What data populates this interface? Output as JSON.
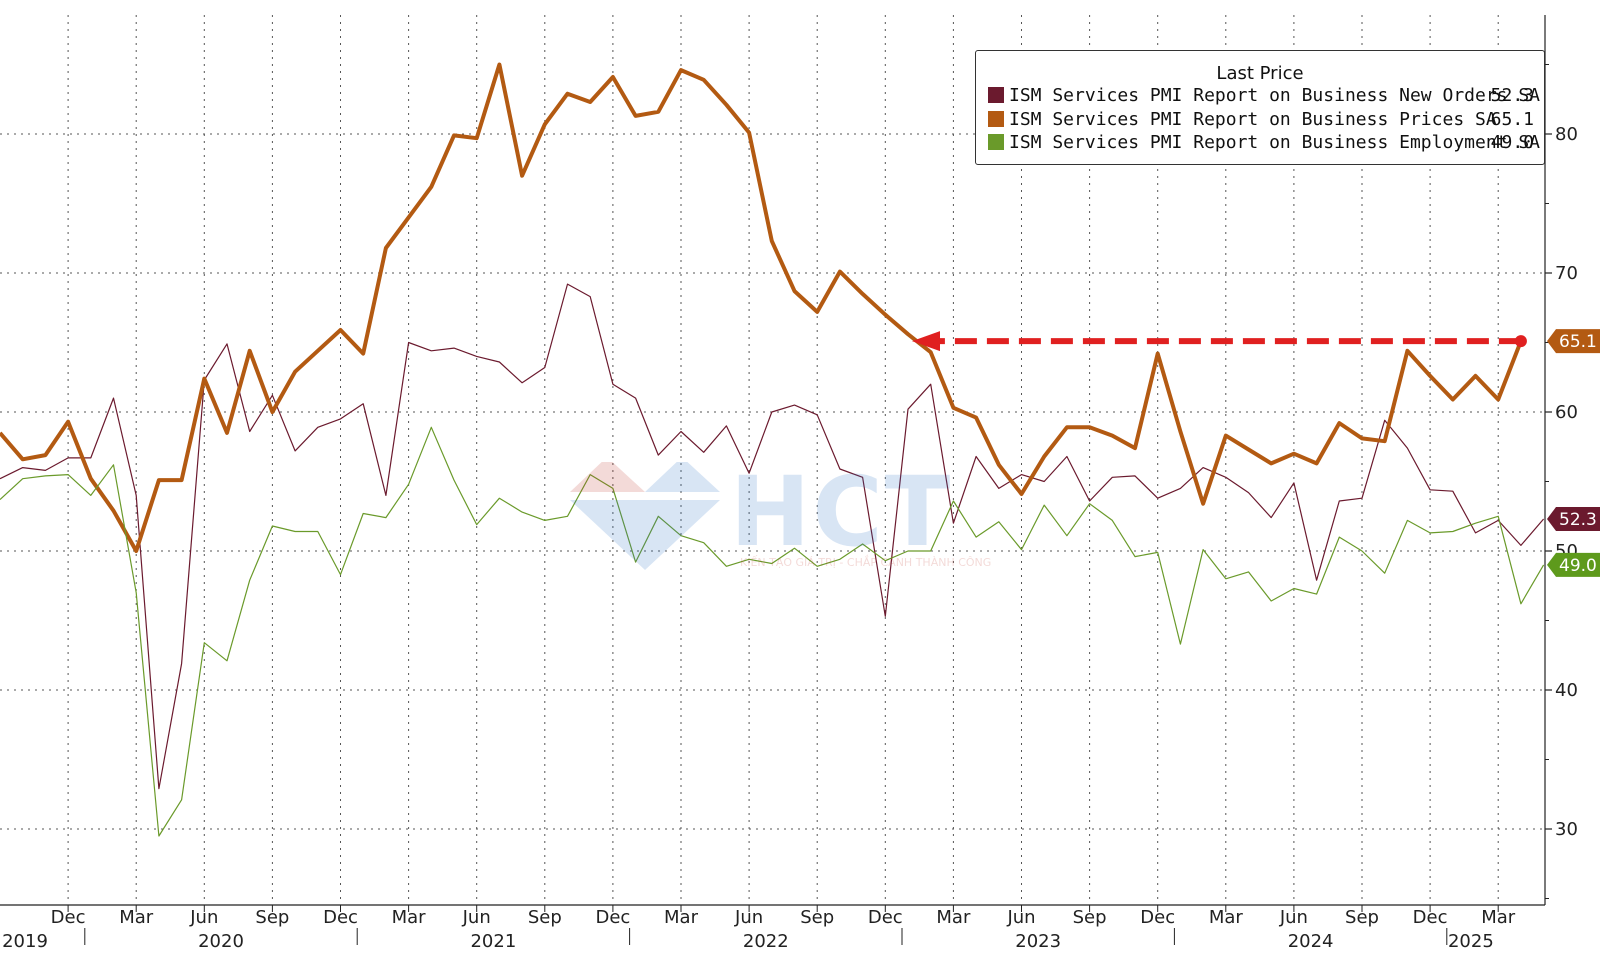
{
  "chart_data": {
    "type": "line",
    "legend": {
      "title": "Last Price",
      "placement": "top-right",
      "entries": [
        {
          "name": "ISM Services PMI Report on Business New Orders SA",
          "last": "52.3",
          "color": "#6b1a2e"
        },
        {
          "name": "ISM Services PMI Report on Business Prices SA",
          "last": "65.1",
          "color": "#b35a12"
        },
        {
          "name": "ISM Services PMI Report on Business Employment SA",
          "last": "49.0",
          "color": "#6a9a2a"
        }
      ]
    },
    "y_axis": {
      "position": "right",
      "ylim": [
        25,
        86
      ],
      "ticks": [
        30,
        40,
        50,
        60,
        70,
        80
      ]
    },
    "x_axis": {
      "month_ticks": [
        "Dec",
        "Mar",
        "Jun",
        "Sep",
        "Dec",
        "Mar",
        "Jun",
        "Sep",
        "Dec",
        "Mar",
        "Jun",
        "Sep",
        "Dec",
        "Mar",
        "Jun",
        "Sep",
        "Dec",
        "Mar",
        "Jun",
        "Sep",
        "Dec",
        "Mar"
      ],
      "years": [
        "2019",
        "2020",
        "2021",
        "2022",
        "2023",
        "2024",
        "2025"
      ]
    },
    "x_start": "2019-09",
    "x_end": "2025-04",
    "series": [
      {
        "name": "ISM Services PMI Report on Business New Orders SA",
        "color": "#6b1a2e",
        "width": 1.2,
        "values": [
          55.2,
          56.0,
          55.8,
          56.7,
          56.7,
          61.0,
          54.0,
          32.9,
          41.9,
          62.3,
          64.9,
          58.6,
          61.2,
          57.2,
          58.9,
          59.5,
          60.6,
          54.0,
          65.0,
          64.4,
          64.6,
          64.0,
          63.6,
          62.1,
          63.2,
          69.2,
          68.3,
          62.0,
          61.0,
          56.9,
          58.6,
          57.1,
          59.0,
          55.6,
          60.0,
          60.5,
          59.8,
          55.9,
          55.3,
          45.3,
          60.2,
          62.0,
          52.0,
          56.8,
          54.5,
          55.5,
          55.0,
          56.8,
          53.6,
          55.3,
          55.4,
          53.8,
          54.5,
          56.0,
          55.3,
          54.2,
          52.4,
          54.9,
          47.9,
          53.6,
          53.8,
          59.4,
          57.4,
          54.4,
          54.3,
          51.3,
          52.2,
          50.4,
          52.3
        ]
      },
      {
        "name": "ISM Services PMI Report on Business Prices SA",
        "color": "#b35a12",
        "width": 4,
        "values": [
          58.5,
          56.6,
          56.9,
          59.3,
          55.2,
          52.9,
          50.0,
          55.1,
          55.1,
          62.4,
          58.5,
          64.4,
          60.0,
          62.9,
          64.4,
          65.9,
          64.2,
          71.8,
          74.0,
          76.2,
          79.9,
          79.7,
          85.0,
          77.0,
          80.7,
          82.9,
          82.3,
          84.1,
          81.3,
          81.6,
          84.6,
          83.9,
          82.1,
          80.1,
          72.3,
          68.7,
          67.2,
          70.1,
          68.5,
          67.0,
          65.6,
          64.3,
          60.3,
          59.6,
          56.2,
          54.1,
          56.8,
          58.9,
          58.9,
          58.3,
          57.4,
          64.2,
          58.6,
          53.4,
          58.3,
          57.3,
          56.3,
          57.0,
          56.3,
          59.2,
          58.1,
          57.9,
          64.4,
          62.6,
          60.9,
          62.6,
          60.9,
          65.1
        ]
      },
      {
        "name": "ISM Services PMI Report on Business Employment SA",
        "color": "#6a9a2a",
        "width": 1.2,
        "values": [
          53.7,
          55.2,
          55.4,
          55.5,
          54.0,
          56.2,
          47.0,
          29.5,
          32.1,
          43.4,
          42.1,
          47.9,
          51.8,
          51.4,
          51.4,
          48.3,
          52.7,
          52.4,
          54.8,
          58.9,
          55.1,
          51.9,
          53.8,
          52.8,
          52.2,
          52.5,
          55.5,
          54.5,
          49.2,
          52.5,
          51.1,
          50.6,
          48.9,
          49.4,
          49.1,
          50.2,
          48.9,
          49.4,
          50.5,
          49.3,
          50.0,
          50.0,
          53.6,
          51.0,
          52.1,
          50.1,
          53.3,
          51.1,
          53.4,
          52.2,
          49.6,
          49.9,
          43.3,
          50.1,
          48.0,
          48.5,
          46.4,
          47.3,
          46.9,
          51.0,
          50.0,
          48.4,
          52.2,
          51.3,
          51.4,
          52.0,
          52.5,
          46.2,
          49.0
        ]
      }
    ],
    "annotation": {
      "type": "dashed-arrow",
      "color": "#e02020",
      "level": 65.1,
      "from": "2025-04",
      "to": "2023-01"
    }
  },
  "watermark": {
    "text": "HCT",
    "subtitle": "KIẾN TẠO GIÁ TRỊ - CHẮP CÁNH THÀNH CÔNG"
  }
}
